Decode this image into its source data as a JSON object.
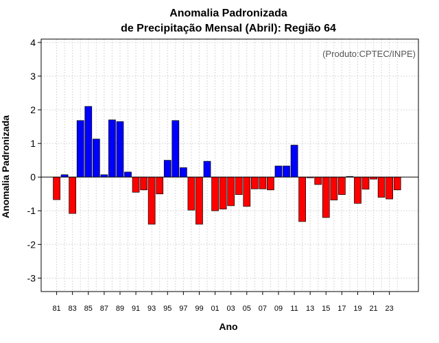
{
  "chart_data": {
    "type": "bar",
    "title_line1": "Anomalia Padronizada",
    "title_line2": "de Precipitação Mensal (Abril): Região 64",
    "xlabel": "Ano",
    "ylabel": "Anomalia Padronizada",
    "credit": "(Produto:CPTEC/INPE)",
    "ylim": [
      -3.4,
      4.1
    ],
    "yticks": [
      -3,
      -2,
      -1,
      0,
      1,
      2,
      3,
      4
    ],
    "positive_color": "#0000ff",
    "negative_color": "#ff0000",
    "categories": [
      "81",
      "82",
      "83",
      "84",
      "85",
      "86",
      "87",
      "88",
      "89",
      "90",
      "91",
      "92",
      "93",
      "94",
      "95",
      "96",
      "97",
      "98",
      "99",
      "00",
      "01",
      "02",
      "03",
      "04",
      "05",
      "06",
      "07",
      "08",
      "09",
      "10",
      "11",
      "12",
      "13",
      "14",
      "15",
      "16",
      "17",
      "18",
      "19",
      "20",
      "21",
      "22",
      "23",
      "24"
    ],
    "values": [
      -0.67,
      0.07,
      -1.08,
      1.68,
      2.1,
      1.13,
      0.07,
      1.7,
      1.65,
      0.15,
      -0.45,
      -0.38,
      -1.4,
      -0.5,
      0.5,
      1.68,
      0.28,
      -0.98,
      -1.4,
      0.47,
      -1.0,
      -0.95,
      -0.85,
      -0.52,
      -0.87,
      -0.35,
      -0.35,
      -0.38,
      0.33,
      0.33,
      0.95,
      -1.32,
      -0.02,
      -0.22,
      -1.2,
      -0.68,
      -0.52,
      0.02,
      -0.78,
      -0.36,
      -0.06,
      -0.6,
      -0.65,
      -0.38
    ],
    "xtick_labels": [
      "81",
      "83",
      "85",
      "87",
      "89",
      "91",
      "93",
      "95",
      "97",
      "99",
      "01",
      "03",
      "05",
      "07",
      "09",
      "11",
      "13",
      "15",
      "17",
      "19",
      "21",
      "23"
    ]
  }
}
